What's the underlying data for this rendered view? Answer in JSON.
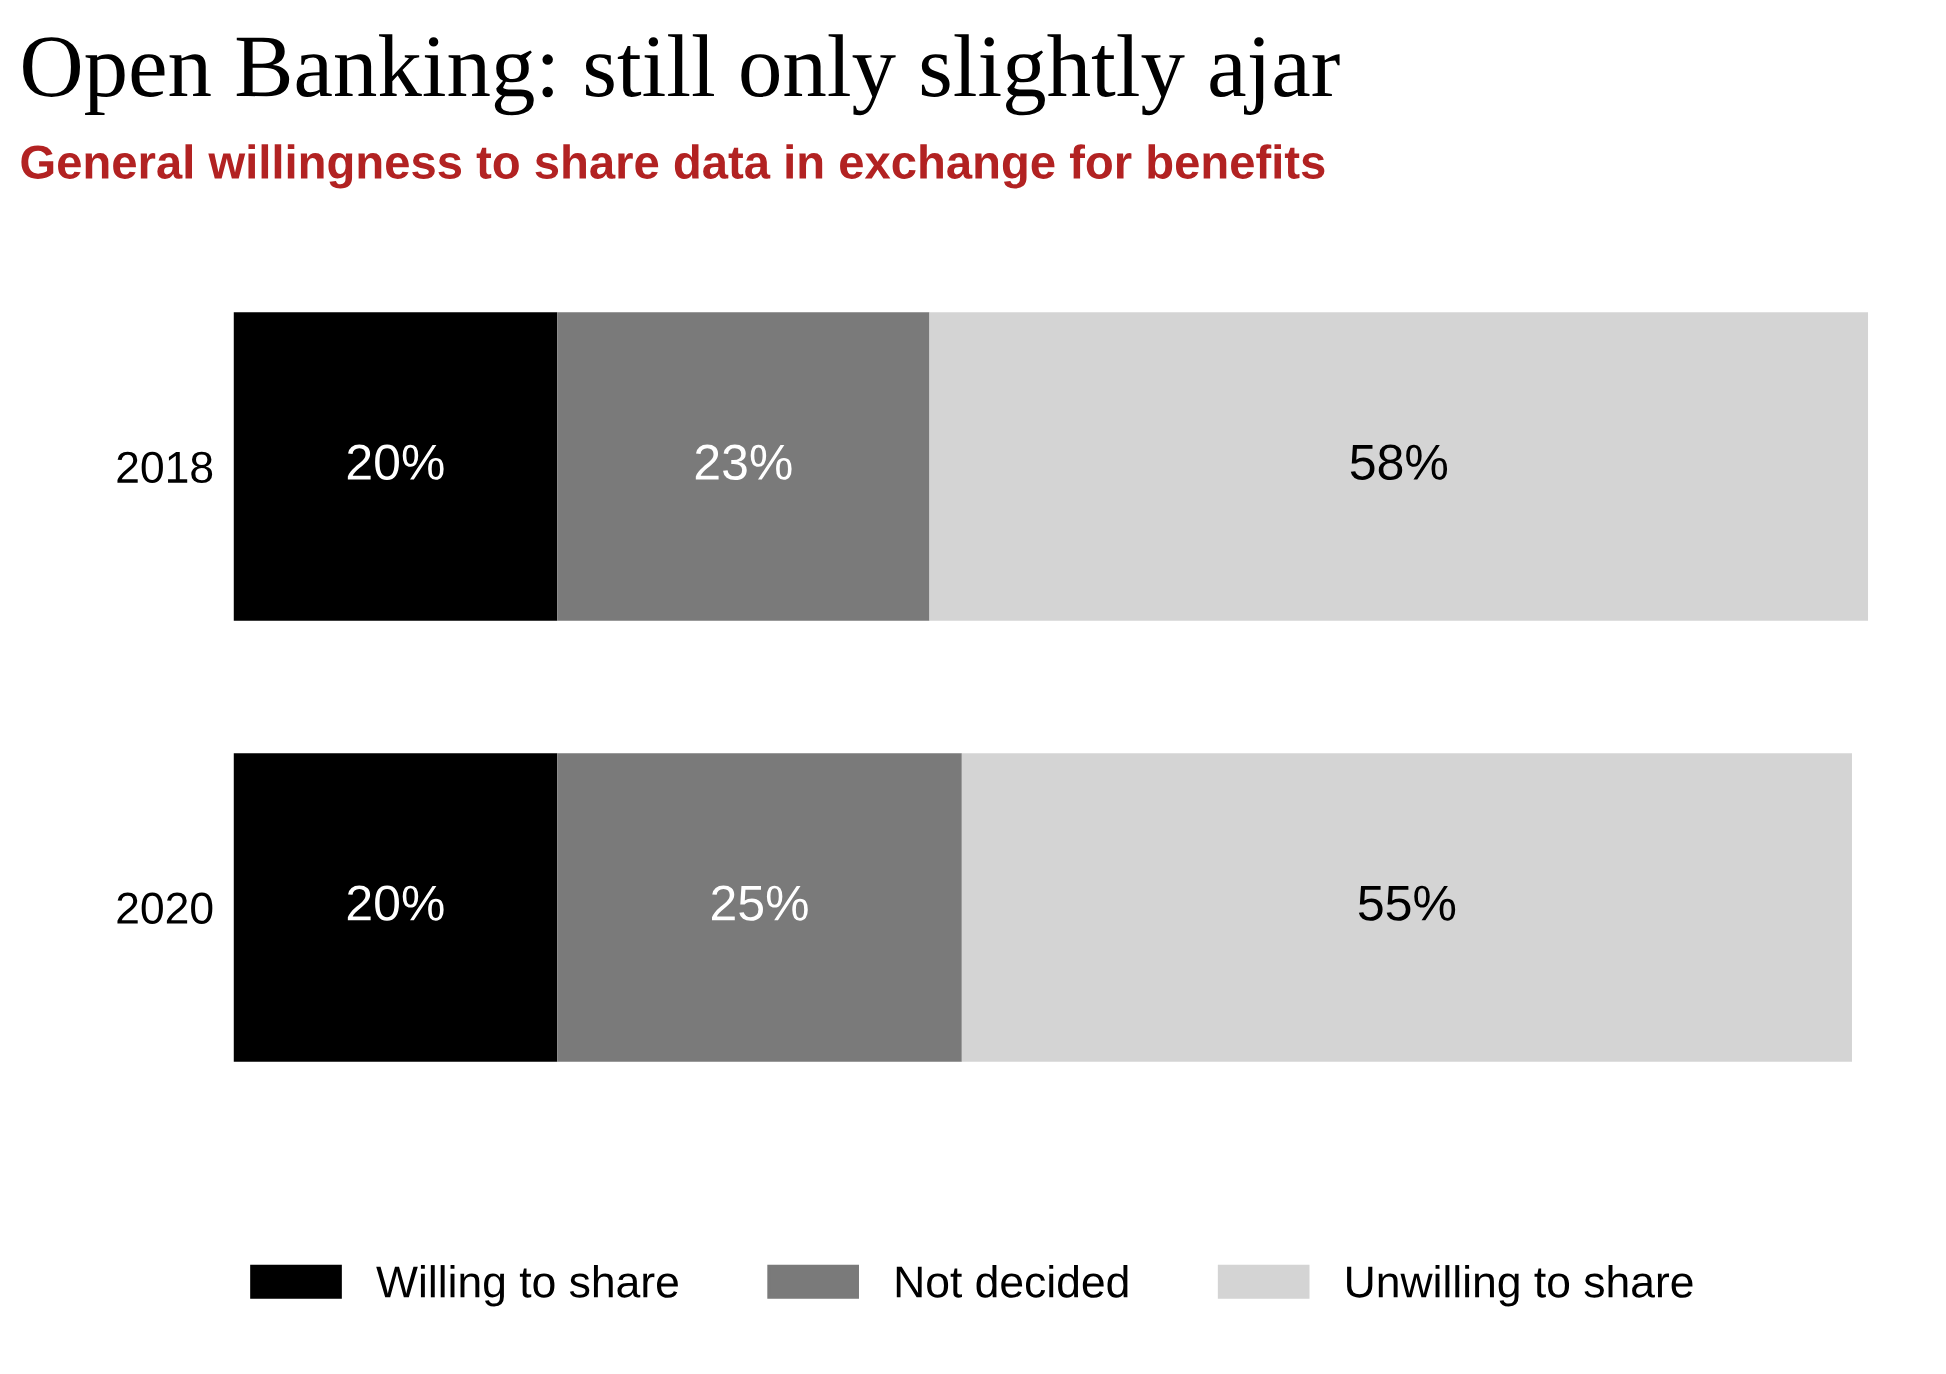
{
  "chart_data": {
    "type": "bar",
    "orientation": "horizontal",
    "stacked": true,
    "title": "Open Banking: still only slightly ajar",
    "subtitle": "General willingness to share data in exchange for benefits",
    "categories": [
      "2018",
      "2020"
    ],
    "series": [
      {
        "name": "Willing to share",
        "color": "#000000",
        "values": [
          20,
          20
        ],
        "value_labels": [
          "20%",
          "20%"
        ]
      },
      {
        "name": "Not decided",
        "color": "#7a7a7a",
        "values": [
          23,
          25
        ],
        "value_labels": [
          "23%",
          "25%"
        ]
      },
      {
        "name": "Unwilling to share",
        "color": "#d4d4d4",
        "values": [
          58,
          55
        ],
        "value_labels": [
          "58%",
          "55%"
        ]
      }
    ],
    "tick_labels": "y",
    "legend": "bottom",
    "grid": false
  }
}
